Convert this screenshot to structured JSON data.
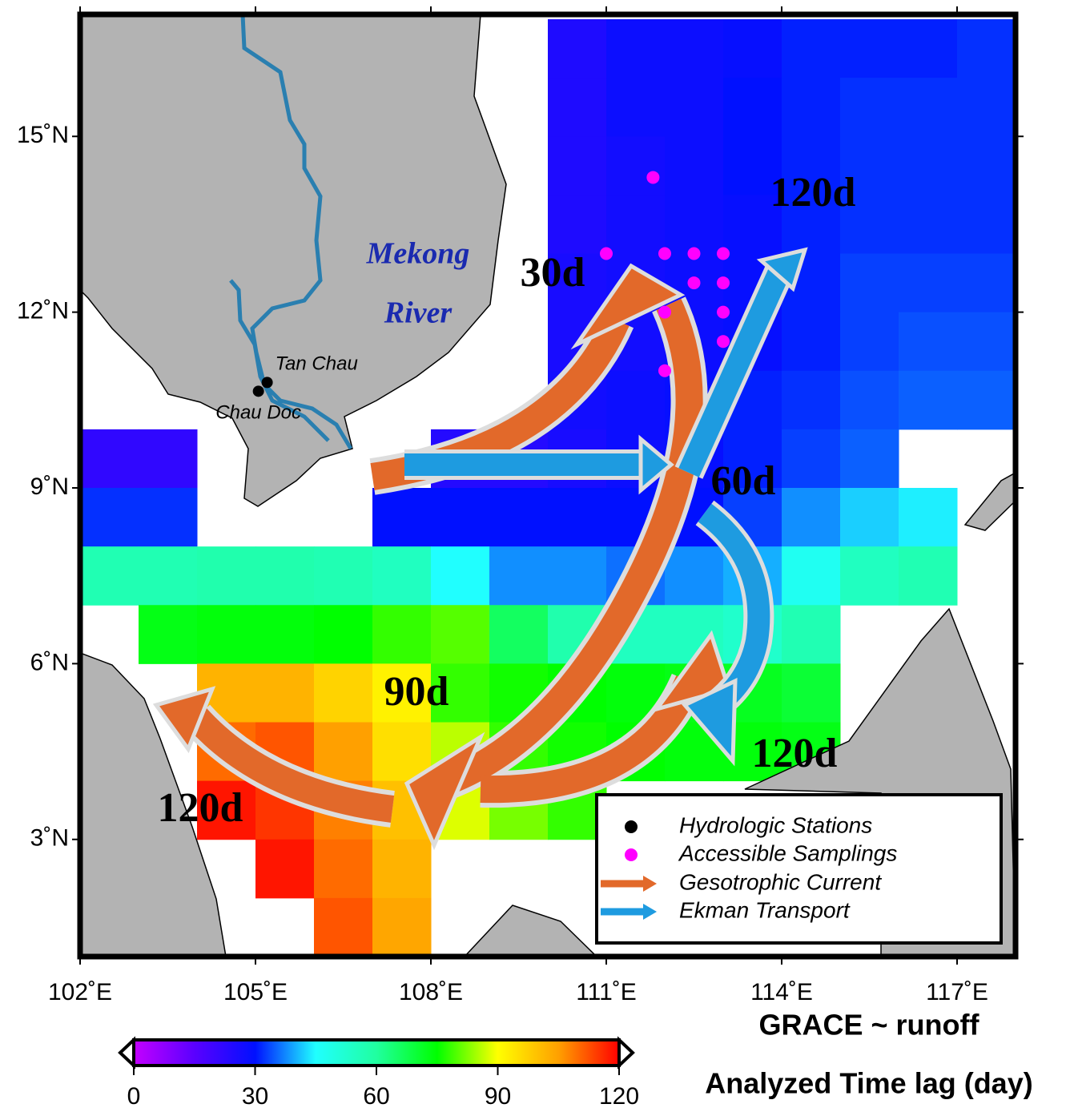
{
  "map": {
    "lonlim": [
      102,
      118
    ],
    "latlim": [
      1,
      17
    ],
    "lon_ticks": [
      {
        "value": 102,
        "label": "102˚E"
      },
      {
        "value": 105,
        "label": "105˚E"
      },
      {
        "value": 108,
        "label": "108˚E"
      },
      {
        "value": 111,
        "label": "111˚E"
      },
      {
        "value": 114,
        "label": "114˚E"
      },
      {
        "value": 117,
        "label": "117˚E"
      }
    ],
    "lat_ticks": [
      {
        "value": 3,
        "label": "3˚N"
      },
      {
        "value": 6,
        "label": "6˚N"
      },
      {
        "value": 9,
        "label": "9˚N"
      },
      {
        "value": 12,
        "label": "12˚N"
      },
      {
        "value": 15,
        "label": "15˚N"
      }
    ],
    "lag_grid": {
      "lon_west": [
        102,
        103,
        104,
        105,
        106,
        107,
        108,
        109,
        110,
        111,
        112,
        113,
        114,
        115,
        116,
        117
      ],
      "lat_top": [
        17,
        16,
        15,
        14,
        13,
        12,
        11,
        10,
        9,
        8,
        7,
        6,
        5,
        4,
        3,
        2
      ],
      "values": [
        [
          null,
          null,
          null,
          null,
          null,
          null,
          null,
          null,
          25,
          28,
          28,
          29,
          31,
          31,
          31,
          32
        ],
        [
          null,
          null,
          null,
          null,
          null,
          null,
          null,
          null,
          25,
          28,
          28,
          30,
          31,
          32,
          32,
          32
        ],
        [
          null,
          null,
          null,
          null,
          null,
          null,
          null,
          null,
          25,
          27,
          28,
          30,
          31,
          32,
          32,
          32
        ],
        [
          null,
          null,
          null,
          null,
          null,
          null,
          null,
          null,
          25,
          27,
          28,
          29,
          31,
          32,
          32,
          32
        ],
        [
          null,
          null,
          null,
          null,
          null,
          null,
          null,
          null,
          26,
          27,
          28,
          29,
          31,
          33,
          33,
          33
        ],
        [
          null,
          null,
          null,
          null,
          null,
          null,
          null,
          null,
          26,
          27,
          28,
          29,
          31,
          33,
          34,
          34
        ],
        [
          null,
          null,
          null,
          null,
          null,
          null,
          null,
          null,
          27,
          28,
          29,
          31,
          32,
          34,
          35,
          35
        ],
        [
          22,
          22,
          null,
          null,
          null,
          null,
          24,
          24,
          26,
          28,
          29,
          31,
          33,
          35,
          null,
          null
        ],
        [
          32,
          32,
          null,
          null,
          null,
          30,
          30,
          30,
          30,
          30,
          30,
          33,
          38,
          42,
          44,
          null
        ],
        [
          57,
          57,
          58,
          58,
          57,
          55,
          45,
          38,
          38,
          36,
          38,
          40,
          47,
          55,
          57,
          null
        ],
        [
          null,
          73,
          74,
          74,
          75,
          78,
          80,
          66,
          58,
          55,
          55,
          53,
          57,
          null,
          null,
          null
        ],
        [
          null,
          null,
          102,
          102,
          97,
          92,
          78,
          76,
          75,
          74,
          73,
          72,
          70,
          null,
          null,
          null
        ],
        [
          null,
          null,
          110,
          112,
          105,
          95,
          86,
          78,
          76,
          75,
          74,
          74,
          73,
          null,
          null,
          null
        ],
        [
          null,
          null,
          118,
          115,
          108,
          100,
          88,
          82,
          78,
          null,
          null,
          null,
          null,
          null,
          null,
          null
        ],
        [
          null,
          null,
          null,
          118,
          110,
          102,
          null,
          null,
          null,
          null,
          null,
          null,
          null,
          null,
          null,
          null
        ],
        [
          null,
          null,
          null,
          null,
          112,
          104,
          null,
          null,
          null,
          null,
          null,
          null,
          null,
          null,
          null,
          null
        ]
      ]
    },
    "stations": [
      {
        "name": "Tan Chau",
        "lon": 105.2,
        "lat": 10.8
      },
      {
        "name": "Chau Doc",
        "lon": 105.05,
        "lat": 10.65
      }
    ],
    "samplings": [
      {
        "lon": 111.8,
        "lat": 14.3
      },
      {
        "lon": 111,
        "lat": 13
      },
      {
        "lon": 112,
        "lat": 13
      },
      {
        "lon": 112.5,
        "lat": 13
      },
      {
        "lon": 113,
        "lat": 13
      },
      {
        "lon": 112.5,
        "lat": 12.5
      },
      {
        "lon": 113,
        "lat": 12.5
      },
      {
        "lon": 112,
        "lat": 12
      },
      {
        "lon": 113,
        "lat": 12
      },
      {
        "lon": 113,
        "lat": 11.5
      },
      {
        "lon": 112,
        "lat": 11
      }
    ],
    "river_label": [
      "Mekong",
      "River"
    ],
    "lag_labels": [
      "30d",
      "60d",
      "90d",
      "120d",
      "120d",
      "120d"
    ]
  },
  "legend": {
    "items": [
      "Hydrologic Stations",
      "Accessible Samplings",
      "Gesotrophic Current",
      "Ekman Transport"
    ]
  },
  "caption": "GRACE ~ runoff",
  "colorbar": {
    "title": "Analyzed Time lag (day)",
    "range": [
      0,
      120
    ],
    "ticks": [
      0,
      30,
      60,
      90,
      120
    ],
    "colors": [
      "#c400ff",
      "#5a00ff",
      "#0010ff",
      "#20ffff",
      "#20ffa0",
      "#00ff00",
      "#ffff00",
      "#ffa000",
      "#ff0000"
    ]
  }
}
